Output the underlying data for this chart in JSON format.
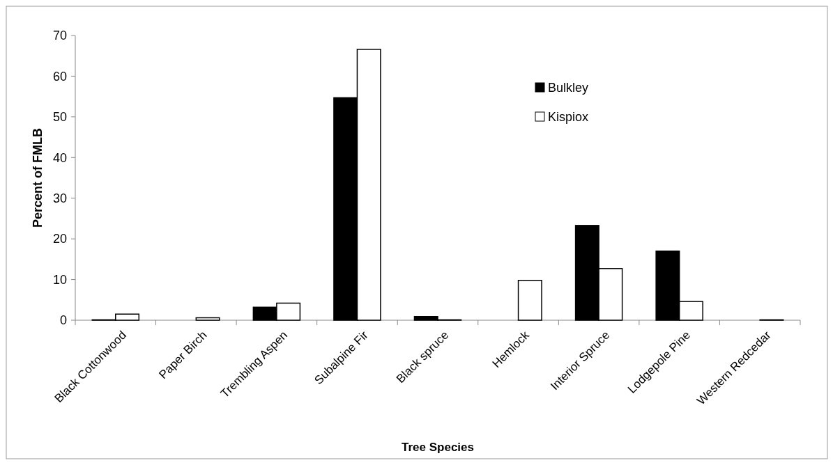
{
  "chart_data": {
    "type": "bar",
    "xlabel": "Tree Species",
    "ylabel": "Percent of FMLB",
    "categories": [
      "Black Cottonwood",
      "Paper Birch",
      "Trembling Aspen",
      "Subalpine Fir",
      "Black spruce",
      "Hemlock",
      "Interior Spruce",
      "Lodgepole Pine",
      "Western Redcedar"
    ],
    "series": [
      {
        "name": "Bulkley",
        "color": "#000000",
        "values": [
          0.1,
          0,
          3.2,
          54.7,
          0.9,
          0,
          23.3,
          17,
          0
        ]
      },
      {
        "name": "Kispiox",
        "color": "#ffffff",
        "values": [
          1.5,
          0.6,
          4.2,
          66.6,
          0.1,
          9.8,
          12.7,
          4.6,
          0.1
        ]
      }
    ],
    "ylim": [
      0,
      70
    ],
    "yticks": [
      0,
      10,
      20,
      30,
      40,
      50,
      60,
      70
    ],
    "legend": "top right"
  }
}
